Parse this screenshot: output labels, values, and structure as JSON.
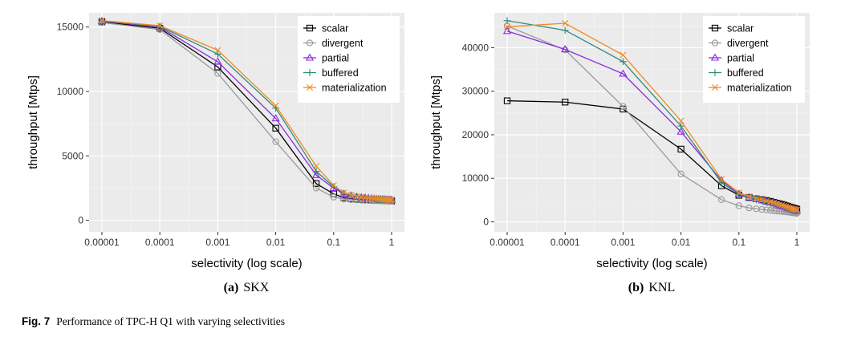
{
  "figure": {
    "caption_label": "Fig. 7",
    "caption_text": "Performance of TPC-H Q1 with varying selectivities"
  },
  "series_styles": [
    {
      "name": "scalar",
      "color": "#000000",
      "marker": "square"
    },
    {
      "name": "divergent",
      "color": "#999999",
      "marker": "circle"
    },
    {
      "name": "partial",
      "color": "#8B2BE2",
      "marker": "triangle"
    },
    {
      "name": "buffered",
      "color": "#2E8B7A",
      "marker": "plus"
    },
    {
      "name": "materialization",
      "color": "#F08A24",
      "marker": "cross"
    }
  ],
  "chart_data": [
    {
      "type": "line",
      "subtitle_label": "(a)",
      "subtitle": "SKX",
      "xlabel": "selectivity (log scale)",
      "ylabel": "throughput [Mtps]",
      "x_scale": "log",
      "x_ticks": [
        1e-05,
        0.0001,
        0.001,
        0.01,
        0.1,
        1
      ],
      "x_tick_labels": [
        "0.00001",
        "0.0001",
        "0.001",
        "0.01",
        "0.1",
        "1"
      ],
      "y_ticks": [
        0,
        5000,
        10000,
        15000
      ],
      "y_tick_labels": [
        "0",
        "5000",
        "10000",
        "15000"
      ],
      "ylim": [
        -900,
        16100
      ],
      "grid": true,
      "legend_position": "top-right",
      "x": [
        1e-05,
        0.0001,
        0.001,
        0.01,
        0.05,
        0.1,
        0.15,
        0.2,
        0.25,
        0.3,
        0.35,
        0.4,
        0.45,
        0.5,
        0.55,
        0.6,
        0.65,
        0.7,
        0.75,
        0.8,
        0.85,
        0.9,
        0.95,
        1
      ],
      "series": [
        {
          "name": "scalar",
          "values": [
            15400,
            14900,
            11900,
            7150,
            2850,
            2050,
            1750,
            1680,
            1640,
            1610,
            1590,
            1570,
            1560,
            1550,
            1545,
            1540,
            1535,
            1530,
            1525,
            1520,
            1515,
            1510,
            1505,
            1500
          ]
        },
        {
          "name": "divergent",
          "values": [
            15350,
            14800,
            11400,
            6100,
            2500,
            1800,
            1650,
            1600,
            1580,
            1560,
            1550,
            1540,
            1530,
            1525,
            1520,
            1515,
            1510,
            1505,
            1500,
            1495,
            1490,
            1485,
            1480,
            1475
          ]
        },
        {
          "name": "partial",
          "values": [
            15450,
            15000,
            12300,
            7900,
            3500,
            2500,
            2050,
            1900,
            1820,
            1770,
            1740,
            1710,
            1690,
            1670,
            1650,
            1640,
            1630,
            1620,
            1610,
            1600,
            1590,
            1585,
            1580,
            1575
          ]
        },
        {
          "name": "buffered",
          "values": [
            15480,
            15050,
            12900,
            8700,
            3800,
            2600,
            2100,
            1950,
            1850,
            1780,
            1740,
            1710,
            1690,
            1670,
            1650,
            1640,
            1630,
            1620,
            1610,
            1600,
            1590,
            1585,
            1580,
            1575
          ]
        },
        {
          "name": "materialization",
          "values": [
            15500,
            15100,
            13200,
            8900,
            4200,
            2700,
            2150,
            1980,
            1870,
            1800,
            1750,
            1720,
            1700,
            1680,
            1660,
            1650,
            1640,
            1630,
            1620,
            1610,
            1600,
            1595,
            1590,
            1585
          ]
        }
      ]
    },
    {
      "type": "line",
      "subtitle_label": "(b)",
      "subtitle": "KNL",
      "xlabel": "selectivity (log scale)",
      "ylabel": "throughput [Mtps]",
      "x_scale": "log",
      "x_ticks": [
        1e-05,
        0.0001,
        0.001,
        0.01,
        0.1,
        1
      ],
      "x_tick_labels": [
        "0.00001",
        "0.0001",
        "0.001",
        "0.01",
        "0.1",
        "1"
      ],
      "y_ticks": [
        0,
        10000,
        20000,
        30000,
        40000
      ],
      "y_tick_labels": [
        "0",
        "10000",
        "20000",
        "30000",
        "40000"
      ],
      "ylim": [
        -2300,
        48000
      ],
      "grid": true,
      "legend_position": "top-right",
      "x": [
        1e-05,
        0.0001,
        0.001,
        0.01,
        0.05,
        0.1,
        0.15,
        0.2,
        0.25,
        0.3,
        0.35,
        0.4,
        0.45,
        0.5,
        0.55,
        0.6,
        0.65,
        0.7,
        0.75,
        0.8,
        0.85,
        0.9,
        0.95,
        1
      ],
      "series": [
        {
          "name": "scalar",
          "values": [
            27800,
            27500,
            25900,
            16700,
            8300,
            6100,
            5600,
            5300,
            5100,
            4900,
            4700,
            4500,
            4300,
            4150,
            4000,
            3850,
            3700,
            3550,
            3400,
            3300,
            3200,
            3100,
            3000,
            2900
          ]
        },
        {
          "name": "divergent",
          "values": [
            45000,
            39500,
            26500,
            11000,
            5100,
            3700,
            3200,
            3000,
            2850,
            2750,
            2650,
            2550,
            2500,
            2450,
            2400,
            2350,
            2300,
            2250,
            2200,
            2150,
            2100,
            2050,
            2000,
            1950
          ]
        },
        {
          "name": "partial",
          "values": [
            43800,
            39600,
            34000,
            20700,
            9500,
            6400,
            5600,
            5200,
            4900,
            4600,
            4400,
            4200,
            4000,
            3800,
            3650,
            3500,
            3350,
            3200,
            3050,
            2900,
            2800,
            2700,
            2600,
            2500
          ]
        },
        {
          "name": "buffered",
          "values": [
            46200,
            44000,
            36800,
            22000,
            9000,
            6300,
            5500,
            5100,
            4800,
            4500,
            4300,
            4100,
            3900,
            3700,
            3550,
            3400,
            3250,
            3100,
            2950,
            2800,
            2700,
            2600,
            2500,
            2400
          ]
        },
        {
          "name": "materialization",
          "values": [
            44800,
            45600,
            38300,
            23200,
            9800,
            6700,
            5800,
            5400,
            5100,
            4800,
            4600,
            4400,
            4200,
            4000,
            3850,
            3700,
            3550,
            3400,
            3250,
            3100,
            3000,
            2900,
            2800,
            2700
          ]
        }
      ]
    }
  ]
}
